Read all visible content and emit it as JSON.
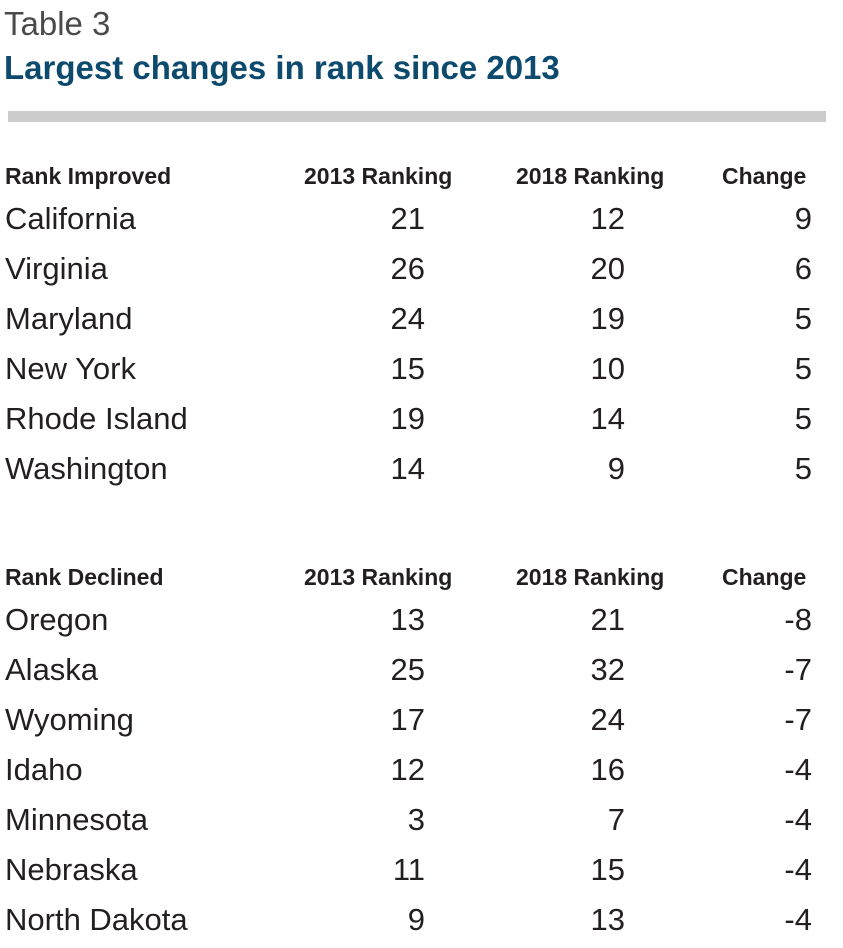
{
  "table_label": "Table 3",
  "title": "Largest changes in rank since 2013",
  "improved": {
    "headers": [
      "Rank Improved",
      "2013 Ranking",
      "2018 Ranking",
      "Change"
    ],
    "rows": [
      [
        "California",
        "21",
        "12",
        "9"
      ],
      [
        "Virginia",
        "26",
        "20",
        "6"
      ],
      [
        "Maryland",
        "24",
        "19",
        "5"
      ],
      [
        "New York",
        "15",
        "10",
        "5"
      ],
      [
        "Rhode Island",
        "19",
        "14",
        "5"
      ],
      [
        "Washington",
        "14",
        "9",
        "5"
      ]
    ]
  },
  "declined": {
    "headers": [
      "Rank Declined",
      "2013 Ranking",
      "2018 Ranking",
      "Change"
    ],
    "rows": [
      [
        "Oregon",
        "13",
        "21",
        "-8"
      ],
      [
        "Alaska",
        "25",
        "32",
        "-7"
      ],
      [
        "Wyoming",
        "17",
        "24",
        "-7"
      ],
      [
        "Idaho",
        "12",
        "16",
        "-4"
      ],
      [
        "Minnesota",
        "3",
        "7",
        "-4"
      ],
      [
        "Nebraska",
        "11",
        "15",
        "-4"
      ],
      [
        "North Dakota",
        "9",
        "13",
        "-4"
      ]
    ]
  }
}
